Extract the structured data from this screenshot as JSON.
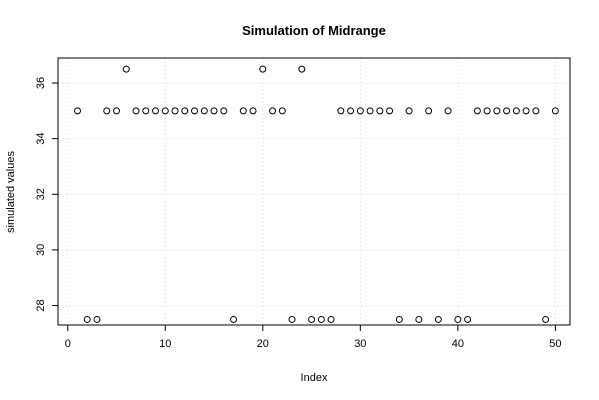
{
  "chart_data": {
    "type": "scatter",
    "title": "Simulation of Midrange",
    "xlabel": "Index",
    "ylabel": "simulated values",
    "xlim": [
      -1,
      51.5
    ],
    "ylim": [
      27.3,
      36.9
    ],
    "xticks": [
      0,
      10,
      20,
      30,
      40,
      50
    ],
    "yticks": [
      28,
      30,
      32,
      34,
      36
    ],
    "grid": true,
    "x": [
      1,
      2,
      3,
      4,
      5,
      6,
      7,
      8,
      9,
      10,
      11,
      12,
      13,
      14,
      15,
      16,
      17,
      18,
      19,
      20,
      21,
      22,
      23,
      24,
      25,
      26,
      27,
      28,
      29,
      30,
      31,
      32,
      33,
      34,
      35,
      36,
      37,
      38,
      39,
      40,
      41,
      42,
      43,
      44,
      45,
      46,
      47,
      48,
      49,
      50
    ],
    "y": [
      35,
      27.5,
      27.5,
      35,
      35,
      36.5,
      35,
      35,
      35,
      35,
      35,
      35,
      35,
      35,
      35,
      35,
      27.5,
      35,
      35,
      36.5,
      35,
      35,
      27.5,
      36.5,
      27.5,
      27.5,
      27.5,
      35,
      35,
      35,
      35,
      35,
      35,
      27.5,
      35,
      27.5,
      35,
      27.5,
      35,
      27.5,
      27.5,
      35,
      35,
      35,
      35,
      35,
      35,
      35,
      27.5,
      35
    ]
  }
}
